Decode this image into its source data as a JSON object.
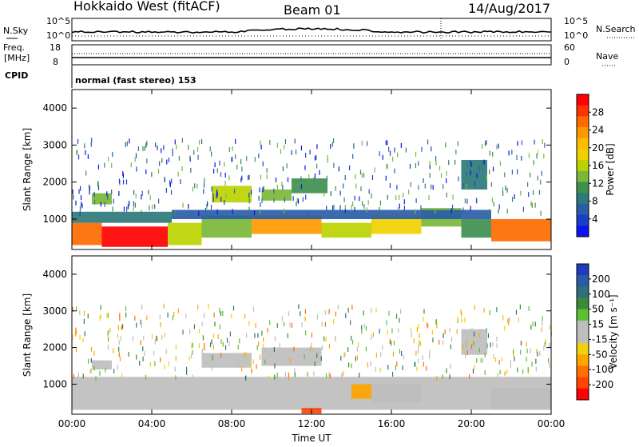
{
  "header": {
    "station": "Hokkaido West (fitACF)",
    "beam": "Beam 01",
    "date": "14/Aug/2017"
  },
  "summary_panel": {
    "nsky_label": "N.Sky",
    "nsky_ticks": [
      "10^5",
      "10^0"
    ],
    "nsearch_label": "N.Search",
    "nsearch_ticks": [
      "10^5",
      "10^0"
    ],
    "freq_label": "Freq.",
    "freq_unit": "[MHz]",
    "freq_ticks": [
      "18",
      "8"
    ],
    "nave_label": "Nave",
    "nave_ticks": [
      "60",
      "0"
    ],
    "cpid_label": "CPID",
    "cpid_text": "normal (fast stereo) 153"
  },
  "power_colorbar": {
    "label": "Power [dB]",
    "ticks": [
      "28",
      "24",
      "20",
      "16",
      "12",
      "8",
      "4"
    ],
    "colors": [
      "#ff0000",
      "#ff3300",
      "#ff6a00",
      "#ff9900",
      "#ffbb00",
      "#f0d000",
      "#bcd200",
      "#7ab83a",
      "#3f8f4f",
      "#2e7a7a",
      "#2a5da8",
      "#1a3ec8",
      "#0a14f0"
    ]
  },
  "velocity_colorbar": {
    "label": "Velocity [m s⁻¹]",
    "ticks": [
      "200",
      "100",
      "50",
      "15",
      "-15",
      "-50",
      "-100",
      "-200"
    ],
    "colors": [
      "#1f3bbd",
      "#2c5aa6",
      "#2f6e7e",
      "#3a8a3a",
      "#5cc030",
      "#bebebe",
      "#bebebe",
      "#f2d010",
      "#ffa500",
      "#ff7000",
      "#ff4400",
      "#ff0000"
    ]
  },
  "chart_data": [
    {
      "type": "heatmap",
      "name": "power",
      "ylabel": "Slant Range [km]",
      "yticks": [
        "4000",
        "3000",
        "2000",
        "1000"
      ],
      "ylim": [
        180,
        4500
      ],
      "xlim": [
        "00:00",
        "00:00"
      ],
      "xticks": [
        "00:00",
        "04:00",
        "08:00",
        "12:00",
        "16:00",
        "20:00",
        "00:00"
      ],
      "clim": [
        0,
        30
      ],
      "cells": [
        {
          "t": [
            0.0,
            1.5
          ],
          "r": [
            300,
            900
          ],
          "v": 24
        },
        {
          "t": [
            1.5,
            4.8
          ],
          "r": [
            250,
            800
          ],
          "v": 28
        },
        {
          "t": [
            0.0,
            5.0
          ],
          "r": [
            900,
            1200
          ],
          "v": 8
        },
        {
          "t": [
            4.8,
            6.5
          ],
          "r": [
            300,
            900
          ],
          "v": 16
        },
        {
          "t": [
            6.5,
            9.0
          ],
          "r": [
            500,
            1100
          ],
          "v": 12
        },
        {
          "t": [
            9.0,
            12.5
          ],
          "r": [
            600,
            1100
          ],
          "v": 22
        },
        {
          "t": [
            12.5,
            15.0
          ],
          "r": [
            500,
            900
          ],
          "v": 14
        },
        {
          "t": [
            15.0,
            17.5
          ],
          "r": [
            600,
            1100
          ],
          "v": 18
        },
        {
          "t": [
            17.5,
            19.5
          ],
          "r": [
            800,
            1300
          ],
          "v": 12
        },
        {
          "t": [
            19.5,
            21.0
          ],
          "r": [
            500,
            1000
          ],
          "v": 10
        },
        {
          "t": [
            21.0,
            24.0
          ],
          "r": [
            400,
            1000
          ],
          "v": 24
        },
        {
          "t": [
            5.0,
            21.0
          ],
          "r": [
            1000,
            1250
          ],
          "v": 6
        },
        {
          "t": [
            1.0,
            2.0
          ],
          "r": [
            1400,
            1700
          ],
          "v": 12
        },
        {
          "t": [
            7.0,
            9.0
          ],
          "r": [
            1450,
            1900
          ],
          "v": 14
        },
        {
          "t": [
            9.5,
            11.0
          ],
          "r": [
            1500,
            1800
          ],
          "v": 12
        },
        {
          "t": [
            11.0,
            12.8
          ],
          "r": [
            1700,
            2100
          ],
          "v": 10
        },
        {
          "t": [
            19.5,
            20.8
          ],
          "r": [
            1800,
            2600
          ],
          "v": 8
        }
      ]
    },
    {
      "type": "heatmap",
      "name": "velocity",
      "ylabel": "Slant Range [km]",
      "yticks": [
        "4000",
        "3000",
        "2000",
        "1000"
      ],
      "ylim": [
        180,
        4500
      ],
      "xlabel": "Time UT",
      "xlim": [
        "00:00",
        "00:00"
      ],
      "xticks": [
        "00:00",
        "04:00",
        "08:00",
        "12:00",
        "16:00",
        "20:00",
        "00:00"
      ],
      "clim": [
        -250,
        250
      ],
      "cells": [
        {
          "t": [
            0.0,
            24.0
          ],
          "r": [
            300,
            1200
          ],
          "v": 0
        },
        {
          "t": [
            6.5,
            9.0
          ],
          "r": [
            1450,
            1850
          ],
          "v": 0
        },
        {
          "t": [
            1.0,
            2.0
          ],
          "r": [
            1400,
            1650
          ],
          "v": 0
        },
        {
          "t": [
            9.5,
            12.5
          ],
          "r": [
            1500,
            2000
          ],
          "v": -30
        },
        {
          "t": [
            14.0,
            15.0
          ],
          "r": [
            600,
            1000
          ],
          "v": -120
        },
        {
          "t": [
            15.0,
            17.5
          ],
          "r": [
            500,
            1000
          ],
          "v": -40
        },
        {
          "t": [
            11.5,
            12.5
          ],
          "r": [
            200,
            350
          ],
          "v": -200
        },
        {
          "t": [
            19.5,
            20.8
          ],
          "r": [
            1800,
            2500
          ],
          "v": 0
        },
        {
          "t": [
            21.0,
            24.0
          ],
          "r": [
            300,
            900
          ],
          "v": 0
        }
      ]
    }
  ]
}
